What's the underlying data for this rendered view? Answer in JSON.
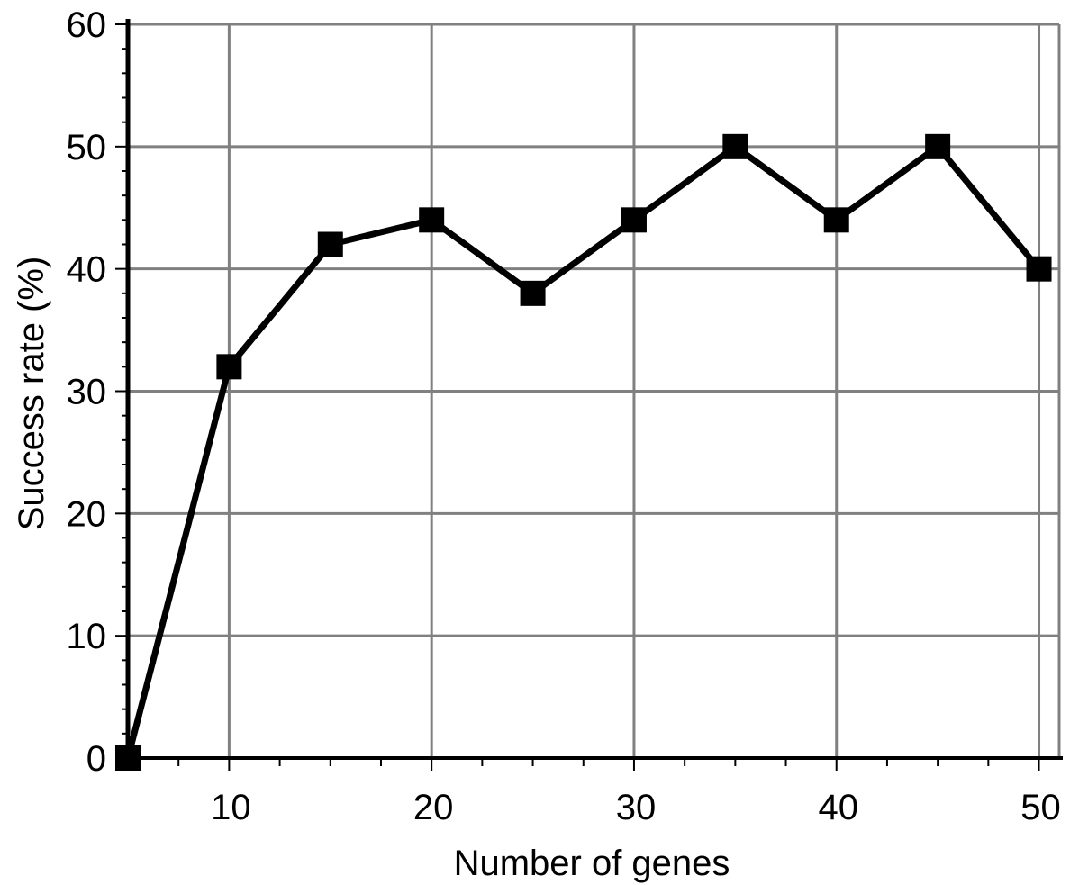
{
  "chart_data": {
    "type": "line",
    "title": "",
    "xlabel": "Number of genes",
    "ylabel": "Success rate (%)",
    "xlim": [
      5,
      51
    ],
    "ylim": [
      0,
      60
    ],
    "x_ticks": [
      10,
      20,
      30,
      40,
      50
    ],
    "y_ticks": [
      0,
      10,
      20,
      30,
      40,
      50,
      60
    ],
    "x_tick_labels": [
      "10",
      "20",
      "30",
      "40",
      "50"
    ],
    "y_tick_labels": [
      "0",
      "10",
      "20",
      "30",
      "40",
      "50",
      "60"
    ],
    "grid": true,
    "legend": "none",
    "series": [
      {
        "x": [
          5,
          10,
          15,
          20,
          25,
          30,
          35,
          40,
          45,
          50
        ],
        "y": [
          0,
          32,
          42,
          44,
          38,
          44,
          50,
          44,
          50,
          40
        ],
        "marker": "square",
        "color": "#000000"
      }
    ],
    "colors": {
      "grid": "#808080",
      "axis": "#000000",
      "line": "#000000"
    }
  }
}
